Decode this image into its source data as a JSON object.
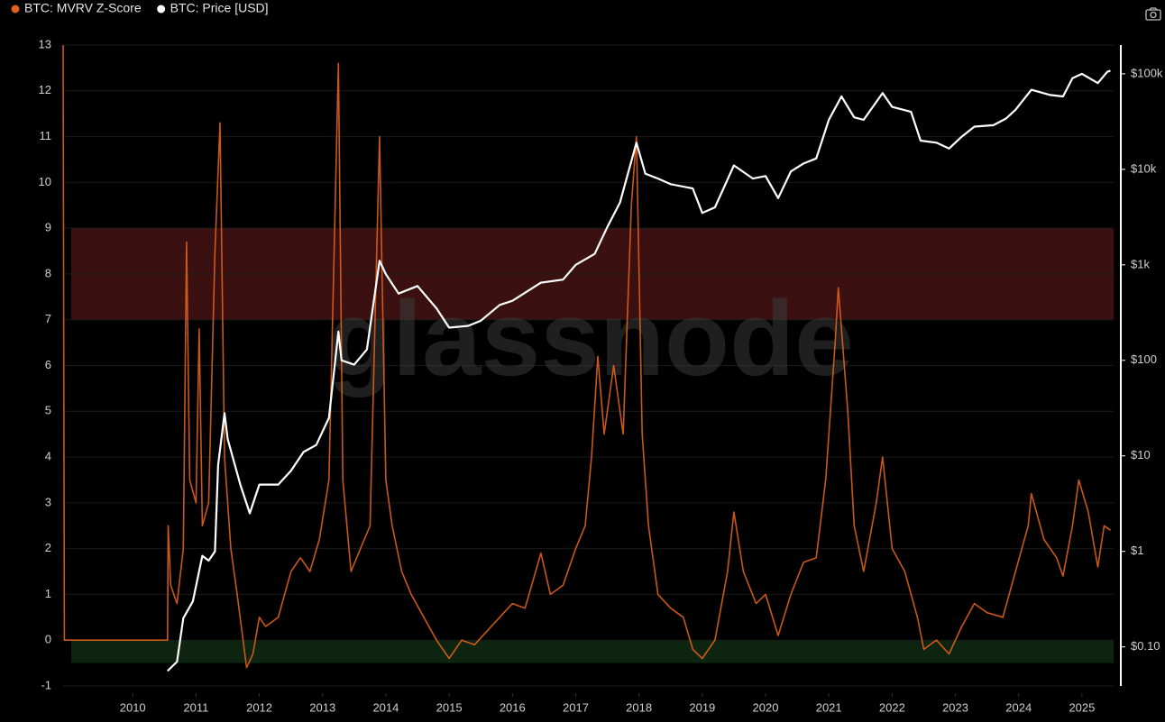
{
  "chart_data": {
    "type": "dual-line",
    "watermark": "glassnode",
    "xlim": [
      2008.9,
      2025.5
    ],
    "xticks": [
      2010,
      2011,
      2012,
      2013,
      2014,
      2015,
      2016,
      2017,
      2018,
      2019,
      2020,
      2021,
      2022,
      2023,
      2024,
      2025
    ],
    "ylim": [
      -1,
      13
    ],
    "yticks": [
      -1,
      0,
      1,
      2,
      3,
      4,
      5,
      6,
      7,
      8,
      9,
      10,
      11,
      12,
      13
    ],
    "y2lim": [
      0.039,
      200000
    ],
    "y2log": true,
    "y2ticks": [
      {
        "value": 0.1,
        "label": "$0.10"
      },
      {
        "value": 1,
        "label": "$1"
      },
      {
        "value": 10,
        "label": "$10"
      },
      {
        "value": 100,
        "label": "$100"
      },
      {
        "value": 1000,
        "label": "$1k"
      },
      {
        "value": 10000,
        "label": "$10k"
      },
      {
        "value": 100000,
        "label": "$100k"
      }
    ],
    "grid": true,
    "bands": [
      {
        "from": 7,
        "to": 9,
        "color": "#3a1010"
      },
      {
        "from": -0.5,
        "to": 0,
        "color": "#0d2410"
      }
    ],
    "series": [
      {
        "name": "BTC: MVRV Z-Score",
        "color": "#e0601c",
        "x": [
          2008.9,
          2008.92,
          2010.55,
          2010.56,
          2010.6,
          2010.7,
          2010.8,
          2010.85,
          2010.9,
          2011.0,
          2011.05,
          2011.1,
          2011.2,
          2011.3,
          2011.38,
          2011.45,
          2011.55,
          2011.65,
          2011.8,
          2011.9,
          2012.0,
          2012.1,
          2012.3,
          2012.5,
          2012.65,
          2012.8,
          2012.95,
          2013.1,
          2013.25,
          2013.32,
          2013.45,
          2013.6,
          2013.75,
          2013.9,
          2014.0,
          2014.1,
          2014.25,
          2014.4,
          2014.6,
          2014.8,
          2015.0,
          2015.2,
          2015.4,
          2015.6,
          2015.8,
          2016.0,
          2016.2,
          2016.45,
          2016.6,
          2016.8,
          2017.0,
          2017.15,
          2017.25,
          2017.35,
          2017.45,
          2017.6,
          2017.75,
          2017.88,
          2017.96,
          2018.05,
          2018.15,
          2018.3,
          2018.5,
          2018.7,
          2018.85,
          2019.0,
          2019.2,
          2019.4,
          2019.5,
          2019.65,
          2019.85,
          2020.0,
          2020.2,
          2020.4,
          2020.6,
          2020.8,
          2020.95,
          2021.1,
          2021.15,
          2021.3,
          2021.4,
          2021.55,
          2021.75,
          2021.85,
          2022.0,
          2022.2,
          2022.4,
          2022.5,
          2022.7,
          2022.9,
          2023.1,
          2023.3,
          2023.5,
          2023.75,
          2023.95,
          2024.15,
          2024.2,
          2024.4,
          2024.6,
          2024.7,
          2024.85,
          2024.95,
          2025.1,
          2025.25,
          2025.35,
          2025.45
        ],
        "values": [
          13,
          0,
          0,
          2.5,
          1.2,
          0.8,
          2.0,
          8.7,
          3.5,
          3.0,
          6.8,
          2.5,
          3.0,
          8.5,
          11.3,
          4.0,
          2.0,
          1.0,
          -0.6,
          -0.3,
          0.5,
          0.3,
          0.5,
          1.5,
          1.8,
          1.5,
          2.2,
          3.5,
          12.6,
          3.5,
          1.5,
          2.0,
          2.5,
          11.0,
          3.5,
          2.5,
          1.5,
          1.0,
          0.5,
          0.0,
          -0.4,
          0.0,
          -0.1,
          0.2,
          0.5,
          0.8,
          0.7,
          1.9,
          1.0,
          1.2,
          2.0,
          2.5,
          4.0,
          6.2,
          4.5,
          6.0,
          4.5,
          9.5,
          11.0,
          4.5,
          2.5,
          1.0,
          0.7,
          0.5,
          -0.2,
          -0.4,
          0.0,
          1.5,
          2.8,
          1.5,
          0.8,
          1.0,
          0.1,
          1.0,
          1.7,
          1.8,
          3.5,
          6.5,
          7.7,
          5.0,
          2.5,
          1.5,
          3.0,
          4.0,
          2.0,
          1.5,
          0.5,
          -0.2,
          0.0,
          -0.3,
          0.3,
          0.8,
          0.6,
          0.5,
          1.5,
          2.5,
          3.2,
          2.2,
          1.8,
          1.4,
          2.5,
          3.5,
          2.8,
          1.6,
          2.5,
          2.4
        ]
      },
      {
        "name": "BTC: Price [USD]",
        "color": "#ffffff",
        "axis": "y2",
        "x": [
          2010.55,
          2010.7,
          2010.8,
          2010.95,
          2011.1,
          2011.2,
          2011.3,
          2011.35,
          2011.45,
          2011.5,
          2011.7,
          2011.85,
          2012.0,
          2012.3,
          2012.5,
          2012.7,
          2012.9,
          2013.1,
          2013.25,
          2013.3,
          2013.5,
          2013.7,
          2013.9,
          2014.0,
          2014.2,
          2014.5,
          2014.8,
          2015.0,
          2015.3,
          2015.5,
          2015.8,
          2016.0,
          2016.45,
          2016.8,
          2017.0,
          2017.3,
          2017.5,
          2017.7,
          2017.96,
          2018.1,
          2018.3,
          2018.5,
          2018.85,
          2019.0,
          2019.2,
          2019.5,
          2019.8,
          2020.0,
          2020.2,
          2020.4,
          2020.6,
          2020.8,
          2021.0,
          2021.2,
          2021.4,
          2021.55,
          2021.85,
          2022.0,
          2022.3,
          2022.45,
          2022.7,
          2022.9,
          2023.1,
          2023.3,
          2023.6,
          2023.8,
          2023.95,
          2024.2,
          2024.5,
          2024.7,
          2024.85,
          2025.0,
          2025.25,
          2025.4,
          2025.45
        ],
        "values": [
          0.056,
          0.07,
          0.2,
          0.3,
          0.9,
          0.8,
          1.0,
          8,
          28,
          15,
          5,
          2.5,
          5,
          5,
          7,
          11,
          13,
          25,
          200,
          100,
          90,
          130,
          1100,
          800,
          500,
          600,
          350,
          220,
          230,
          260,
          380,
          420,
          650,
          700,
          1000,
          1300,
          2500,
          4500,
          19000,
          9000,
          8000,
          7000,
          6300,
          3500,
          4000,
          11000,
          8000,
          8500,
          5000,
          9500,
          11500,
          13000,
          33000,
          58000,
          35000,
          33000,
          63000,
          45000,
          40000,
          20000,
          19000,
          16500,
          22000,
          28000,
          29000,
          34000,
          42000,
          68000,
          60000,
          58000,
          90000,
          100000,
          80000,
          105000,
          108000
        ]
      }
    ]
  }
}
